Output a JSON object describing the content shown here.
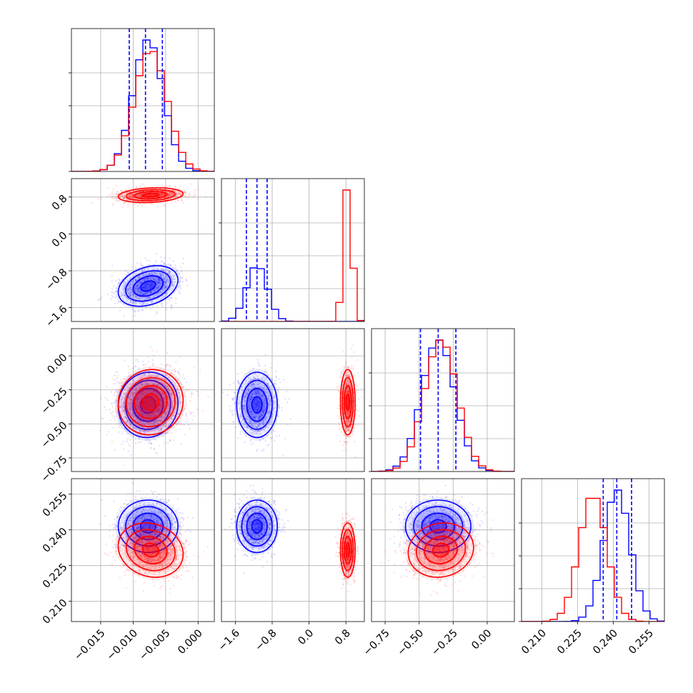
{
  "colors": {
    "series_a": "#0000ff",
    "series_b": "#ff0000",
    "grid": "#b0b0b0"
  },
  "chart_data": {
    "type": "scatter",
    "layout": "corner",
    "grid": true,
    "series": [
      {
        "color": "#0000ff",
        "mean": [
          -0.0077,
          -1.13,
          -0.36,
          0.2415
        ],
        "sd": [
          0.0023,
          0.22,
          0.12,
          0.0055
        ],
        "corr": {
          "p1_p0": 0.3,
          "p2_p0": 0.05,
          "p3_p0": 0.0,
          "p2_p1": 0.0,
          "p3_p1": 0.0,
          "p3_p2": 0.0
        }
      },
      {
        "color": "#ff0000",
        "mean": [
          -0.0073,
          0.84,
          -0.34,
          0.2315
        ],
        "sd": [
          0.0025,
          0.08,
          0.12,
          0.0057
        ],
        "corr": {
          "p1_p0": 0.2,
          "p2_p0": 0.05,
          "p3_p0": -0.15,
          "p2_p1": 0.0,
          "p3_p1": 0.0,
          "p3_p2": 0.1
        }
      }
    ],
    "quantile_lines": {
      "color": "#0000ff",
      "p0": [
        -0.0106,
        -0.0081,
        -0.0055
      ],
      "p1": [
        -1.36,
        -1.13,
        -0.91
      ],
      "p2": [
        -0.49,
        -0.36,
        -0.23
      ],
      "p3": [
        0.2358,
        0.2415,
        0.2477
      ]
    },
    "axes": [
      {
        "range": [
          -0.0195,
          0.0025
        ],
        "ticks": [
          "-0.015",
          "-0.010",
          "-0.005",
          "0.000"
        ],
        "tick_values": [
          -0.015,
          -0.01,
          -0.005,
          0.0
        ]
      },
      {
        "range": [
          -1.9,
          1.2
        ],
        "ticks": [
          "-1.6",
          "-0.8",
          "0.0",
          "0.8"
        ],
        "tick_values": [
          -1.6,
          -0.8,
          0.0,
          0.8
        ]
      },
      {
        "range": [
          -0.85,
          0.2
        ],
        "ticks": [
          "-0.75",
          "-0.50",
          "-0.25",
          "0.00"
        ],
        "tick_values": [
          -0.75,
          -0.5,
          -0.25,
          0.0
        ]
      },
      {
        "range": [
          0.2015,
          0.2615
        ],
        "ticks": [
          "0.210",
          "0.225",
          "0.240",
          "0.255"
        ],
        "tick_values": [
          0.21,
          0.225,
          0.24,
          0.255
        ]
      }
    ]
  }
}
